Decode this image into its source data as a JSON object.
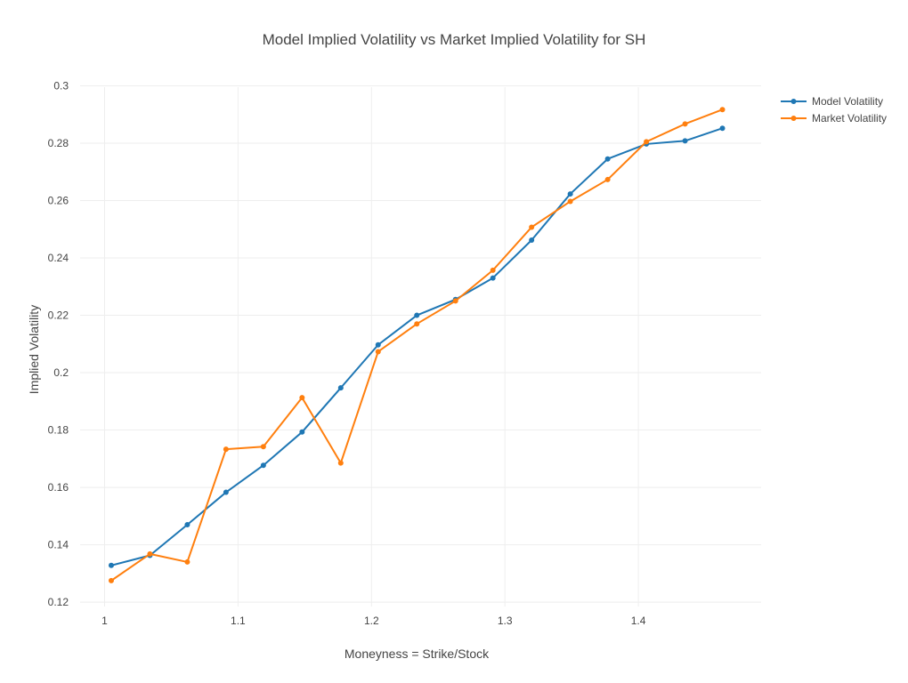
{
  "chart_data": {
    "type": "line",
    "title": "Model Implied Volatility vs Market Implied Volatility for SH",
    "xlabel": "Moneyness = Strike/Stock",
    "ylabel": "Implied Volatility",
    "xlim": [
      0.975,
      1.492
    ],
    "ylim": [
      0.116,
      0.302
    ],
    "x_ticks": [
      "1",
      "1.1",
      "1.2",
      "1.3",
      "1.4"
    ],
    "y_ticks": [
      "0.12",
      "0.14",
      "0.16",
      "0.18",
      "0.2",
      "0.22",
      "0.24",
      "0.26",
      "0.28",
      "0.3"
    ],
    "x_tick_values": [
      1,
      1.1,
      1.2,
      1.3,
      1.4
    ],
    "y_tick_values": [
      0.12,
      0.14,
      0.16,
      0.18,
      0.2,
      0.22,
      0.24,
      0.26,
      0.28,
      0.3
    ],
    "grid": true,
    "legend_position": "top-right",
    "x": [
      1.005,
      1.034,
      1.062,
      1.091,
      1.119,
      1.148,
      1.177,
      1.205,
      1.234,
      1.263,
      1.291,
      1.32,
      1.349,
      1.377,
      1.406,
      1.435,
      1.463
    ],
    "series": [
      {
        "name": "Model Volatility",
        "color": "#1f77b4",
        "values": [
          0.1328,
          0.1363,
          0.147,
          0.1583,
          0.1677,
          0.1793,
          0.1947,
          0.2097,
          0.22,
          0.2255,
          0.233,
          0.2462,
          0.2623,
          0.2745,
          0.2797,
          0.2808,
          0.2852
        ]
      },
      {
        "name": "Market Volatility",
        "color": "#ff7f0e",
        "values": [
          0.1275,
          0.1368,
          0.134,
          0.1733,
          0.1742,
          0.1913,
          0.1685,
          0.2073,
          0.217,
          0.225,
          0.2357,
          0.2507,
          0.2597,
          0.2673,
          0.2805,
          0.2867,
          0.2917
        ]
      }
    ]
  }
}
